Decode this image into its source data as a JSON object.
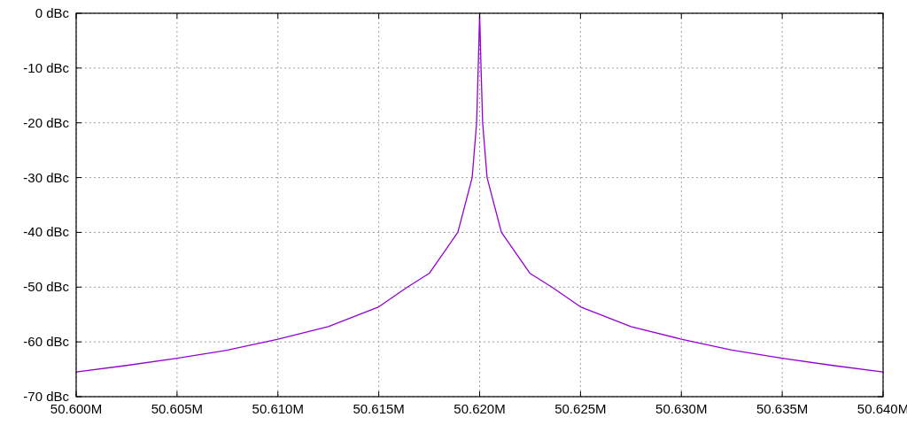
{
  "chart_data": {
    "type": "line",
    "x": [
      50.6,
      50.6025,
      50.605,
      50.6075,
      50.61,
      50.6125,
      50.615,
      50.61642,
      50.6175,
      50.61892,
      50.61963,
      50.61985,
      50.61993,
      50.62,
      50.62007,
      50.62015,
      50.62037,
      50.62108,
      50.6225,
      50.62358,
      50.625,
      50.6275,
      50.63,
      50.6325,
      50.635,
      50.6375,
      50.64
    ],
    "series": [
      {
        "color": "#9400d3",
        "values": [
          -65.5,
          -64.3,
          -63.0,
          -61.5,
          -59.5,
          -57.2,
          -53.6,
          -50,
          -47.5,
          -40,
          -30,
          -20,
          -10,
          0,
          -10,
          -20,
          -30,
          -40,
          -47.5,
          -50,
          -53.6,
          -57.2,
          -59.5,
          -61.5,
          -63.0,
          -64.3,
          -65.5
        ]
      }
    ],
    "xlim": [
      50.6,
      50.64
    ],
    "xticks": [
      {
        "value": 50.6,
        "label": "50.600M"
      },
      {
        "value": 50.605,
        "label": "50.605M"
      },
      {
        "value": 50.61,
        "label": "50.610M"
      },
      {
        "value": 50.615,
        "label": "50.615M"
      },
      {
        "value": 50.62,
        "label": "50.620M"
      },
      {
        "value": 50.625,
        "label": "50.625M"
      },
      {
        "value": 50.63,
        "label": "50.630M"
      },
      {
        "value": 50.635,
        "label": "50.635M"
      },
      {
        "value": 50.64,
        "label": "50.640M"
      }
    ],
    "ylim": [
      -70,
      0
    ],
    "yticks": [
      {
        "value": -70,
        "label": "-70 dBc"
      },
      {
        "value": -60,
        "label": "-60 dBc"
      },
      {
        "value": -50,
        "label": "-50 dBc"
      },
      {
        "value": -40,
        "label": "-40 dBc"
      },
      {
        "value": -30,
        "label": "-30 dBc"
      },
      {
        "value": -20,
        "label": "-20 dBc"
      },
      {
        "value": -10,
        "label": "-10 dBc"
      },
      {
        "value": 0,
        "label": "0 dBc"
      }
    ],
    "grid": true
  }
}
